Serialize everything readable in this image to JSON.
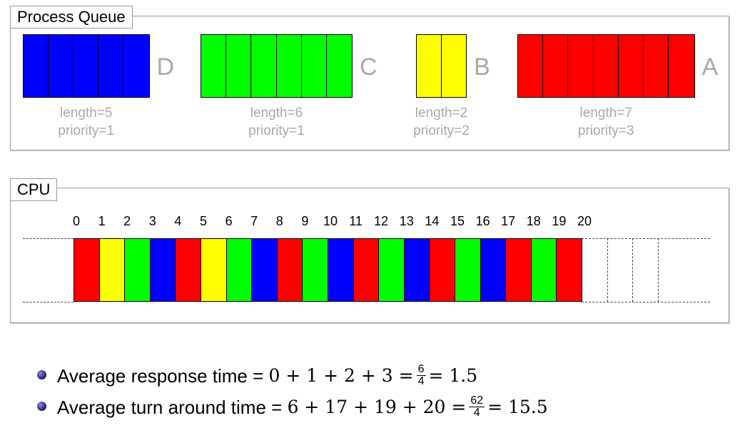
{
  "process_queue": {
    "title": "Process Queue",
    "processes": [
      {
        "name": "D",
        "length_label": "length=5",
        "priority_label": "priority=1",
        "length": 5,
        "color": "#0000ff"
      },
      {
        "name": "C",
        "length_label": "length=6",
        "priority_label": "priority=1",
        "length": 6,
        "color": "#00ff00"
      },
      {
        "name": "B",
        "length_label": "length=2",
        "priority_label": "priority=2",
        "length": 2,
        "color": "#ffff00"
      },
      {
        "name": "A",
        "length_label": "length=7",
        "priority_label": "priority=3",
        "length": 7,
        "color": "#ff0000"
      }
    ]
  },
  "cpu": {
    "title": "CPU",
    "ticks": [
      "0",
      "1",
      "2",
      "3",
      "4",
      "5",
      "6",
      "7",
      "8",
      "9",
      "10",
      "11",
      "12",
      "13",
      "14",
      "15",
      "16",
      "17",
      "18",
      "19",
      "20"
    ],
    "schedule": [
      "A",
      "B",
      "C",
      "D",
      "A",
      "B",
      "C",
      "D",
      "A",
      "C",
      "D",
      "A",
      "C",
      "D",
      "A",
      "C",
      "D",
      "A",
      "C",
      "A"
    ],
    "empty_slots": 3
  },
  "colors": {
    "A": "#ff0000",
    "B": "#ffff00",
    "C": "#00ff00",
    "D": "#0000ff"
  },
  "metrics": {
    "response": {
      "label": "Average response time =",
      "expr": "0 + 1 + 2 + 3 =",
      "frac_num": "6",
      "frac_den": "4",
      "result": "= 1.5"
    },
    "turnaround": {
      "label": "Average turn around time =",
      "expr": "6 + 17 + 19 + 20 =",
      "frac_num": "62",
      "frac_den": "4",
      "result": "= 15.5"
    }
  }
}
